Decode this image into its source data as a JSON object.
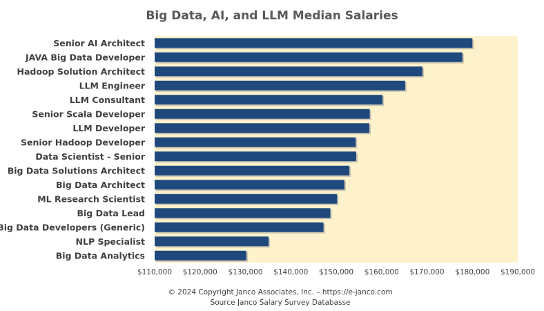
{
  "chart_data": {
    "type": "bar",
    "orientation": "horizontal",
    "title": "Big Data, AI, and LLM Median Salaries",
    "xlabel": "",
    "ylabel": "",
    "categories": [
      "Senior AI Architect",
      "JAVA Big Data Developer",
      "Hadoop Solution Architect",
      "LLM Engineer",
      "LLM Consultant",
      "Senior Scala Developer",
      "LLM Developer",
      "Senior Hadoop Developer",
      "Data Scientist - Senior",
      "Big Data Solutions Architect",
      "Big Data Architect",
      "ML Research Scientist",
      "Big Data Lead",
      "Big Data Developers (Generic)",
      "NLP Specialist",
      "Big Data Analytics"
    ],
    "values": [
      180000,
      177800,
      169000,
      165200,
      160200,
      157400,
      157300,
      154300,
      154400,
      152900,
      151800,
      150200,
      148700,
      147200,
      135100,
      130200
    ],
    "xlim": [
      110000,
      190000
    ],
    "xticks": [
      110000,
      120000,
      130000,
      140000,
      150000,
      160000,
      170000,
      180000,
      190000
    ],
    "tick_labels": [
      "$110,000",
      "$120,000",
      "$130,000",
      "$140,000",
      "$150,000",
      "$160,000",
      "$170,000",
      "$180,000",
      "$190,000"
    ],
    "grid": false,
    "legend": "none"
  },
  "colors": {
    "bar": "#1f497d",
    "plot_background": "#fef2cc",
    "text": "#404040",
    "title": "#595959"
  },
  "footer": {
    "copyright": "© 2024 Copyright Janco Associates, Inc. – https://e-janco.com",
    "source": "Source Janco Salary Survey Databasse"
  }
}
